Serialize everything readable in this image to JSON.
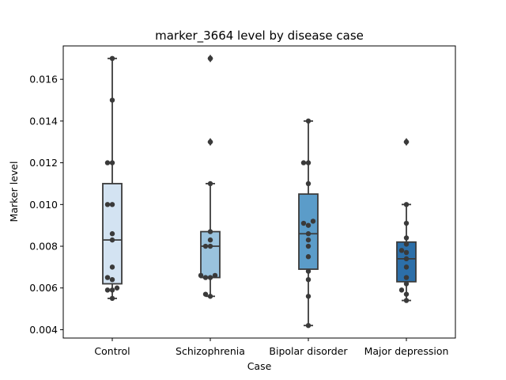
{
  "chart_data": {
    "type": "box",
    "title": "marker_3664 level by disease case",
    "xlabel": "Case",
    "ylabel": "Marker level",
    "ylim": [
      0.0036,
      0.0176
    ],
    "yticks": [
      "0.004",
      "0.006",
      "0.008",
      "0.010",
      "0.012",
      "0.014",
      "0.016"
    ],
    "ytick_values": [
      0.004,
      0.006,
      0.008,
      0.01,
      0.012,
      0.014,
      0.016
    ],
    "categories": [
      "Control",
      "Schizophrenia",
      "Bipolar disorder",
      "Major depression"
    ],
    "grid": false,
    "series": [
      {
        "category": "Control",
        "color": "#d3e3f2",
        "box": {
          "q1": 0.0062,
          "median": 0.0083,
          "q3": 0.011,
          "whisker_low": 0.0055,
          "whisker_high": 0.017
        },
        "outliers": [],
        "points": [
          0.017,
          0.015,
          0.012,
          0.012,
          0.01,
          0.01,
          0.0086,
          0.0083,
          0.007,
          0.0065,
          0.0064,
          0.006,
          0.0059,
          0.0059,
          0.0055
        ]
      },
      {
        "category": "Schizophrenia",
        "color": "#9ac3de",
        "box": {
          "q1": 0.0065,
          "median": 0.008,
          "q3": 0.0087,
          "whisker_low": 0.0056,
          "whisker_high": 0.011
        },
        "outliers": [
          0.017,
          0.013
        ],
        "points": [
          0.017,
          0.013,
          0.011,
          0.0087,
          0.0083,
          0.008,
          0.008,
          0.0066,
          0.0066,
          0.0065,
          0.0065,
          0.0057,
          0.0056
        ]
      },
      {
        "category": "Bipolar disorder",
        "color": "#5b9cc9",
        "box": {
          "q1": 0.0069,
          "median": 0.0086,
          "q3": 0.0105,
          "whisker_low": 0.0042,
          "whisker_high": 0.014
        },
        "outliers": [],
        "points": [
          0.014,
          0.012,
          0.012,
          0.011,
          0.0092,
          0.0091,
          0.009,
          0.0086,
          0.0083,
          0.008,
          0.0075,
          0.0068,
          0.0064,
          0.0056,
          0.0042
        ]
      },
      {
        "category": "Major depression",
        "color": "#2c6fa9",
        "box": {
          "q1": 0.0063,
          "median": 0.0074,
          "q3": 0.0082,
          "whisker_low": 0.0054,
          "whisker_high": 0.01
        },
        "outliers": [
          0.013
        ],
        "points": [
          0.013,
          0.01,
          0.0091,
          0.0084,
          0.0081,
          0.0078,
          0.0077,
          0.0074,
          0.007,
          0.0065,
          0.0062,
          0.0059,
          0.0057,
          0.0054
        ]
      }
    ]
  }
}
